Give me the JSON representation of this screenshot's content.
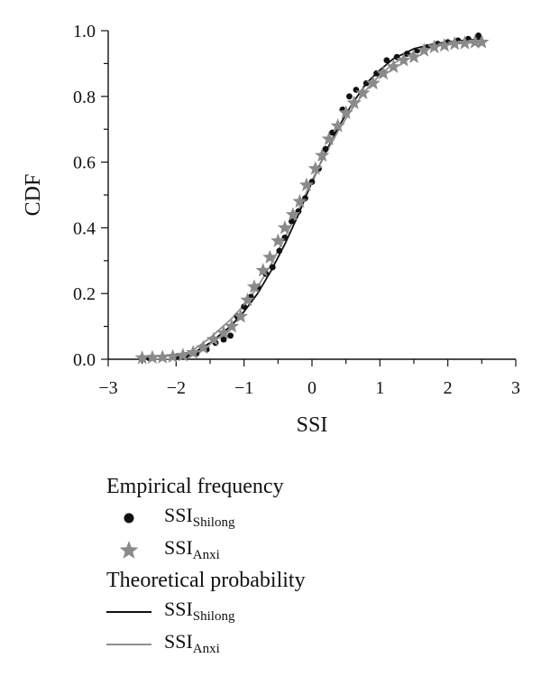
{
  "chart_data": {
    "type": "scatter",
    "xlabel": "SSI",
    "ylabel": "CDF",
    "xlim": [
      -3,
      3
    ],
    "ylim": [
      0,
      1
    ],
    "x_ticks": [
      "−3",
      "−2",
      "−1",
      "0",
      "1",
      "2",
      "3"
    ],
    "y_ticks": [
      "0.0",
      "0.2",
      "0.4",
      "0.6",
      "0.8",
      "1.0"
    ],
    "grid": false,
    "legend_position": "below",
    "series": [
      {
        "group": "empirical",
        "marker": "dot",
        "color": "#111111",
        "points": [
          [
            -2.4,
            0.004
          ],
          [
            -2.2,
            0.006
          ],
          [
            -2.0,
            0.008
          ],
          [
            -1.85,
            0.012
          ],
          [
            -1.7,
            0.018
          ],
          [
            -1.55,
            0.03
          ],
          [
            -1.42,
            0.05
          ],
          [
            -1.3,
            0.06
          ],
          [
            -1.2,
            0.072
          ],
          [
            -1.1,
            0.13
          ],
          [
            -1.0,
            0.16
          ],
          [
            -0.9,
            0.19
          ],
          [
            -0.8,
            0.22
          ],
          [
            -0.68,
            0.26
          ],
          [
            -0.58,
            0.28
          ],
          [
            -0.48,
            0.33
          ],
          [
            -0.4,
            0.37
          ],
          [
            -0.3,
            0.42
          ],
          [
            -0.2,
            0.45
          ],
          [
            -0.1,
            0.49
          ],
          [
            0.0,
            0.54
          ],
          [
            0.1,
            0.58
          ],
          [
            0.2,
            0.64
          ],
          [
            0.3,
            0.69
          ],
          [
            0.45,
            0.76
          ],
          [
            0.55,
            0.8
          ],
          [
            0.65,
            0.82
          ],
          [
            0.8,
            0.84
          ],
          [
            0.95,
            0.87
          ],
          [
            1.1,
            0.91
          ],
          [
            1.25,
            0.92
          ],
          [
            1.4,
            0.93
          ],
          [
            1.55,
            0.94
          ],
          [
            1.7,
            0.95
          ],
          [
            1.85,
            0.96
          ],
          [
            2.0,
            0.965
          ],
          [
            2.15,
            0.97
          ],
          [
            2.3,
            0.975
          ],
          [
            2.45,
            0.985
          ]
        ]
      },
      {
        "group": "empirical",
        "marker": "star",
        "color": "#8a8a8a",
        "points": [
          [
            -2.5,
            0.004
          ],
          [
            -2.35,
            0.005
          ],
          [
            -2.2,
            0.006
          ],
          [
            -2.05,
            0.008
          ],
          [
            -1.9,
            0.012
          ],
          [
            -1.75,
            0.02
          ],
          [
            -1.6,
            0.035
          ],
          [
            -1.45,
            0.06
          ],
          [
            -1.3,
            0.08
          ],
          [
            -1.18,
            0.1
          ],
          [
            -1.05,
            0.13
          ],
          [
            -0.95,
            0.18
          ],
          [
            -0.85,
            0.22
          ],
          [
            -0.72,
            0.27
          ],
          [
            -0.62,
            0.31
          ],
          [
            -0.5,
            0.36
          ],
          [
            -0.4,
            0.4
          ],
          [
            -0.28,
            0.44
          ],
          [
            -0.18,
            0.48
          ],
          [
            -0.08,
            0.53
          ],
          [
            0.05,
            0.58
          ],
          [
            0.15,
            0.62
          ],
          [
            0.25,
            0.67
          ],
          [
            0.38,
            0.71
          ],
          [
            0.5,
            0.75
          ],
          [
            0.62,
            0.78
          ],
          [
            0.75,
            0.81
          ],
          [
            0.9,
            0.84
          ],
          [
            1.05,
            0.87
          ],
          [
            1.2,
            0.89
          ],
          [
            1.35,
            0.91
          ],
          [
            1.5,
            0.92
          ],
          [
            1.65,
            0.94
          ],
          [
            1.8,
            0.95
          ],
          [
            1.95,
            0.955
          ],
          [
            2.1,
            0.96
          ],
          [
            2.25,
            0.962
          ],
          [
            2.4,
            0.965
          ],
          [
            2.5,
            0.965
          ]
        ]
      },
      {
        "group": "theoretical",
        "marker": "line",
        "color": "#111111",
        "points": [
          [
            -2.5,
            0.0
          ],
          [
            -2.2,
            0.0
          ],
          [
            -2.0,
            0.0
          ],
          [
            -1.8,
            0.012
          ],
          [
            -1.5,
            0.05
          ],
          [
            -1.2,
            0.1
          ],
          [
            -1.0,
            0.145
          ],
          [
            -0.8,
            0.2
          ],
          [
            -0.6,
            0.27
          ],
          [
            -0.4,
            0.35
          ],
          [
            -0.2,
            0.44
          ],
          [
            0.0,
            0.54
          ],
          [
            0.2,
            0.63
          ],
          [
            0.4,
            0.71
          ],
          [
            0.6,
            0.78
          ],
          [
            0.8,
            0.84
          ],
          [
            1.0,
            0.88
          ],
          [
            1.2,
            0.915
          ],
          [
            1.5,
            0.945
          ],
          [
            1.8,
            0.96
          ],
          [
            2.1,
            0.968
          ],
          [
            2.5,
            0.975
          ]
        ]
      },
      {
        "group": "theoretical",
        "marker": "line",
        "color": "#8f8f8f",
        "points": [
          [
            -2.5,
            0.0
          ],
          [
            -2.2,
            0.0
          ],
          [
            -2.0,
            0.002
          ],
          [
            -1.8,
            0.02
          ],
          [
            -1.5,
            0.065
          ],
          [
            -1.2,
            0.12
          ],
          [
            -1.0,
            0.165
          ],
          [
            -0.8,
            0.22
          ],
          [
            -0.6,
            0.29
          ],
          [
            -0.4,
            0.37
          ],
          [
            -0.2,
            0.455
          ],
          [
            0.0,
            0.545
          ],
          [
            0.2,
            0.625
          ],
          [
            0.4,
            0.7
          ],
          [
            0.6,
            0.765
          ],
          [
            0.8,
            0.82
          ],
          [
            1.0,
            0.865
          ],
          [
            1.2,
            0.9
          ],
          [
            1.5,
            0.935
          ],
          [
            1.8,
            0.952
          ],
          [
            2.1,
            0.96
          ],
          [
            2.5,
            0.965
          ]
        ]
      }
    ]
  },
  "legend": {
    "empirical_heading": "Empirical frequency",
    "theoretical_heading": "Theoretical probability",
    "base_label": "SSI",
    "station_shilong": "Shilong",
    "station_anxi": "Anxi"
  }
}
